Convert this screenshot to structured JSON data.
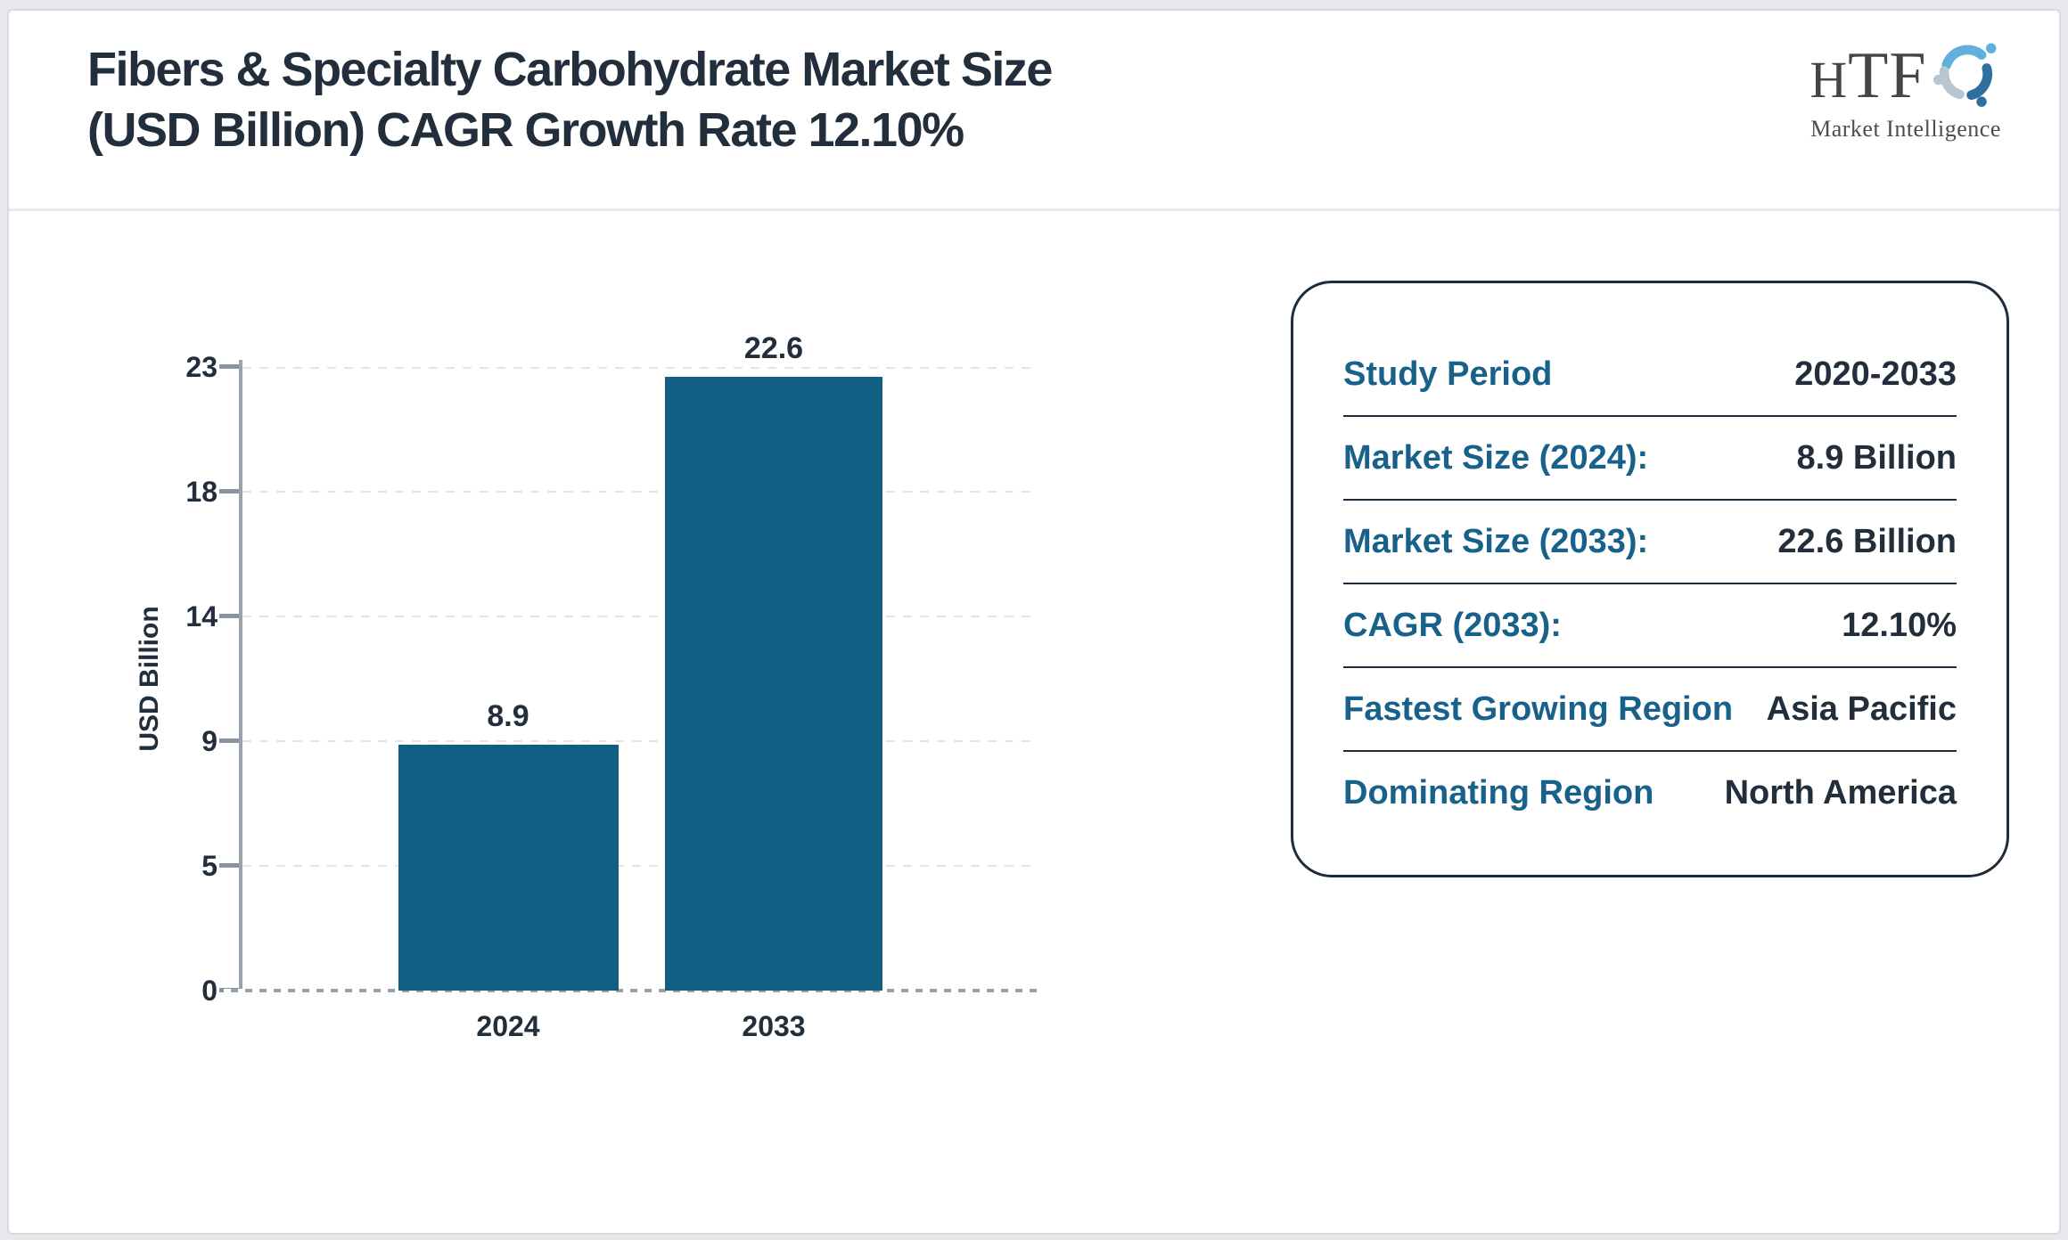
{
  "header": {
    "title_line1": "Fibers & Specialty Carbohydrate Market Size",
    "title_line2": "(USD Billion) CAGR Growth Rate 12.10%",
    "brand": "HTF",
    "tagline": "Market Intelligence",
    "logo_icon": "people-swirl-icon"
  },
  "chart_data": {
    "type": "bar",
    "categories": [
      "2024",
      "2033"
    ],
    "values": [
      8.9,
      22.6
    ],
    "bar_labels": [
      "8.9",
      "22.6"
    ],
    "ylabel": "USD Billion",
    "yticks": [
      0,
      5,
      9,
      14,
      18,
      23
    ],
    "ylim": [
      0,
      23
    ],
    "grid": "horizontal-dashed",
    "legend": "none",
    "bar_color": "#125e82"
  },
  "summary_card": {
    "rows": [
      {
        "label": "Study Period",
        "value": "2020-2033"
      },
      {
        "label": "Market Size (2024):",
        "value": "8.9 Billion"
      },
      {
        "label": "Market Size (2033):",
        "value": "22.6 Billion"
      },
      {
        "label": "CAGR (2033):",
        "value": "12.10%"
      },
      {
        "label": "Fastest Growing Region",
        "value": "Asia Pacific"
      },
      {
        "label": "Dominating Region",
        "value": "North America"
      }
    ]
  },
  "colors": {
    "bar": "#125e82",
    "accent_teal": "#17618a",
    "text_dark": "#222e3c",
    "axis_gray": "#9aa2ac"
  }
}
